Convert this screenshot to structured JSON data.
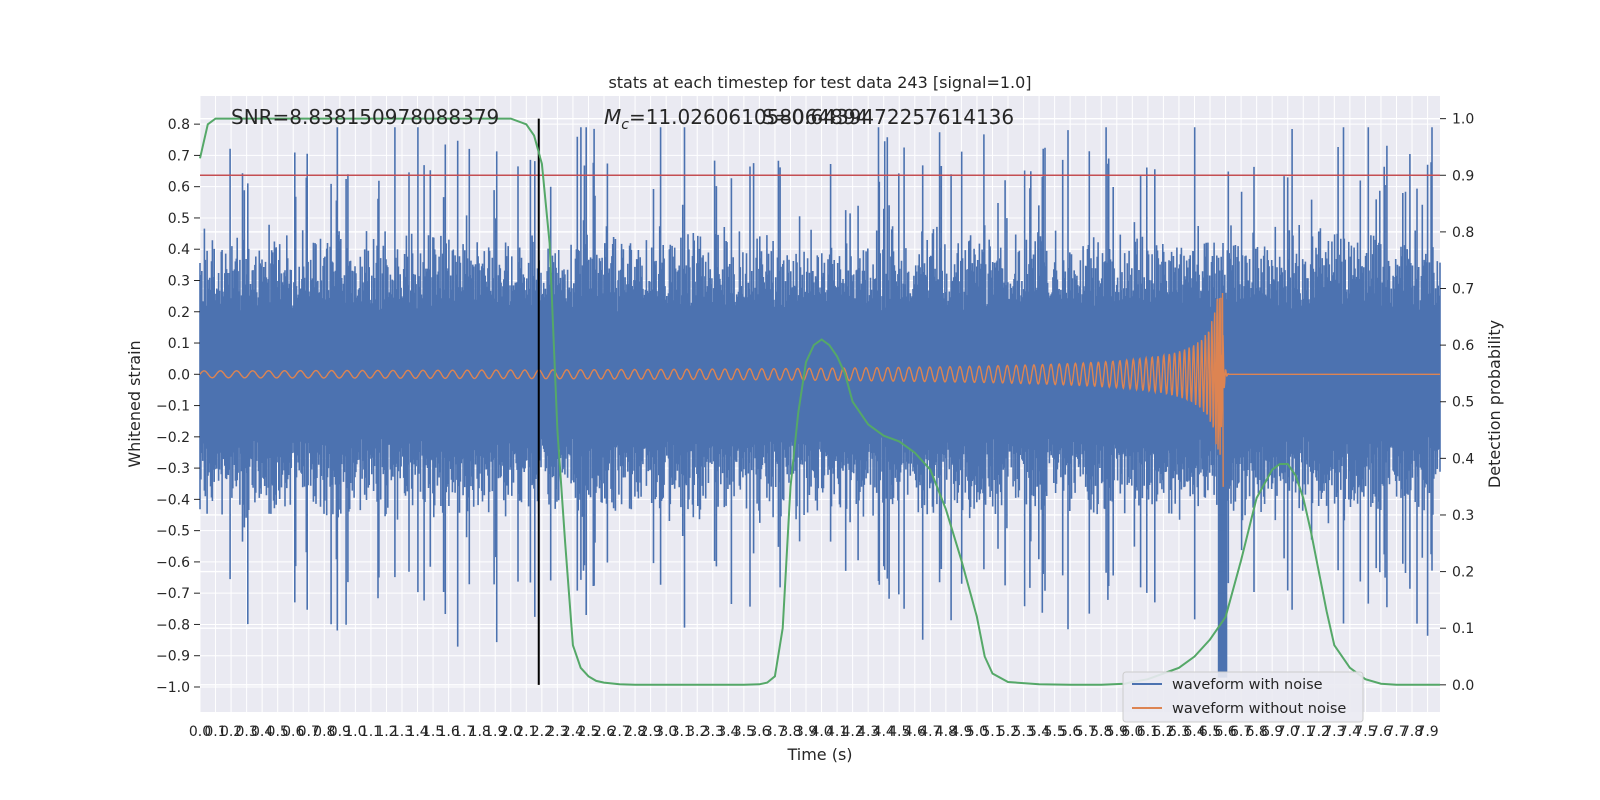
{
  "chart_data": {
    "type": "line",
    "title": "stats at each timestep for test data 243 [signal=1.0]",
    "xlabel": "Time (s)",
    "ylabel": "Whitened strain",
    "y2label": "Detection probability",
    "xlim": [
      0.0,
      7.98
    ],
    "ylim": [
      -1.08,
      0.89
    ],
    "y2lim": [
      -0.048,
      1.04
    ],
    "x_ticks": [
      "0.0",
      "0.1",
      "0.2",
      "0.3",
      "0.4",
      "0.5",
      "0.6",
      "0.7",
      "0.8",
      "0.9",
      "1.0",
      "1.1",
      "1.2",
      "1.3",
      "1.4",
      "1.5",
      "1.6",
      "1.7",
      "1.8",
      "1.9",
      "2.0",
      "2.1",
      "2.2",
      "2.3",
      "2.4",
      "2.5",
      "2.6",
      "2.7",
      "2.8",
      "2.9",
      "3.0",
      "3.1",
      "3.2",
      "3.3",
      "3.4",
      "3.5",
      "3.6",
      "3.7",
      "3.8",
      "3.9",
      "4.0",
      "4.1",
      "4.2",
      "4.3",
      "4.4",
      "4.5",
      "4.6",
      "4.7",
      "4.8",
      "4.9",
      "5.0",
      "5.1",
      "5.2",
      "5.3",
      "5.4",
      "5.5",
      "5.6",
      "5.7",
      "5.8",
      "5.9",
      "6.0",
      "6.1",
      "6.2",
      "6.3",
      "6.4",
      "6.5",
      "6.6",
      "6.7",
      "6.8",
      "6.9",
      "7.0",
      "7.1",
      "7.2",
      "7.3",
      "7.4",
      "7.5",
      "7.6",
      "7.7",
      "7.8",
      "7.9"
    ],
    "y_ticks": [
      "0.8",
      "0.7",
      "0.6",
      "0.5",
      "0.4",
      "0.3",
      "0.2",
      "0.1",
      "0.0",
      "−0.1",
      "−0.2",
      "−0.3",
      "−0.4",
      "−0.5",
      "−0.6",
      "−0.7",
      "−0.8",
      "−0.9",
      "−1.0"
    ],
    "y2_ticks": [
      "1.0",
      "0.9",
      "0.8",
      "0.7",
      "0.6",
      "0.5",
      "0.4",
      "0.3",
      "0.2",
      "0.1",
      "0.0"
    ],
    "annotations": {
      "snr": "SNR=8.838150978088379",
      "mc": "=11.026061058064894",
      "mc_symbol": "M",
      "mc_subscript": "c",
      "overlap": "S=0.6439472257614136"
    },
    "threshold_probability": 0.9,
    "marker_time": 2.18,
    "noise_envelope": {
      "base_amplitude": 0.42,
      "peak_time": 6.58,
      "peak_min": -0.97,
      "extreme_max": 0.79,
      "extreme_min": -0.74
    },
    "chirp": {
      "merger_time": 6.58,
      "peak_max": 0.26,
      "peak_min": -0.36
    },
    "detection_probability": {
      "t": [
        0.0,
        0.05,
        0.1,
        0.2,
        0.3,
        0.5,
        1.0,
        1.5,
        2.0,
        2.1,
        2.15,
        2.2,
        2.25,
        2.3,
        2.35,
        2.4,
        2.45,
        2.5,
        2.55,
        2.6,
        2.7,
        2.8,
        3.0,
        3.3,
        3.5,
        3.6,
        3.65,
        3.7,
        3.75,
        3.8,
        3.85,
        3.9,
        3.95,
        4.0,
        4.05,
        4.1,
        4.15,
        4.2,
        4.3,
        4.4,
        4.5,
        4.6,
        4.7,
        4.8,
        4.9,
        5.0,
        5.05,
        5.1,
        5.2,
        5.4,
        5.6,
        5.8,
        5.95,
        6.0,
        6.1,
        6.2,
        6.3,
        6.4,
        6.5,
        6.6,
        6.7,
        6.8,
        6.9,
        6.95,
        7.0,
        7.05,
        7.1,
        7.15,
        7.2,
        7.25,
        7.3,
        7.4,
        7.5,
        7.6,
        7.7,
        7.8,
        7.9,
        7.98
      ],
      "p": [
        0.93,
        0.99,
        1.0,
        1.0,
        1.0,
        1.0,
        1.0,
        1.0,
        1.0,
        0.99,
        0.97,
        0.92,
        0.78,
        0.45,
        0.25,
        0.07,
        0.03,
        0.015,
        0.007,
        0.004,
        0.001,
        0.0,
        0.0,
        0.0,
        0.0,
        0.001,
        0.004,
        0.015,
        0.1,
        0.35,
        0.48,
        0.57,
        0.6,
        0.61,
        0.6,
        0.58,
        0.55,
        0.5,
        0.46,
        0.44,
        0.43,
        0.41,
        0.38,
        0.31,
        0.22,
        0.12,
        0.05,
        0.02,
        0.005,
        0.001,
        0.0,
        0.0,
        0.002,
        0.005,
        0.01,
        0.02,
        0.03,
        0.05,
        0.08,
        0.12,
        0.22,
        0.33,
        0.38,
        0.39,
        0.39,
        0.37,
        0.33,
        0.27,
        0.2,
        0.13,
        0.07,
        0.03,
        0.01,
        0.002,
        0.0,
        0.0,
        0.0,
        0.0
      ]
    },
    "series": [
      {
        "name": "waveform with noise",
        "color": "#4c72b0"
      },
      {
        "name": "waveform without noise",
        "color": "#dd8452"
      }
    ],
    "detection_color": "#55a868",
    "threshold_color": "#c44e52",
    "marker_color": "#000000",
    "background_color": "#eaeaf2",
    "grid": true,
    "legend_position": "lower-right"
  }
}
